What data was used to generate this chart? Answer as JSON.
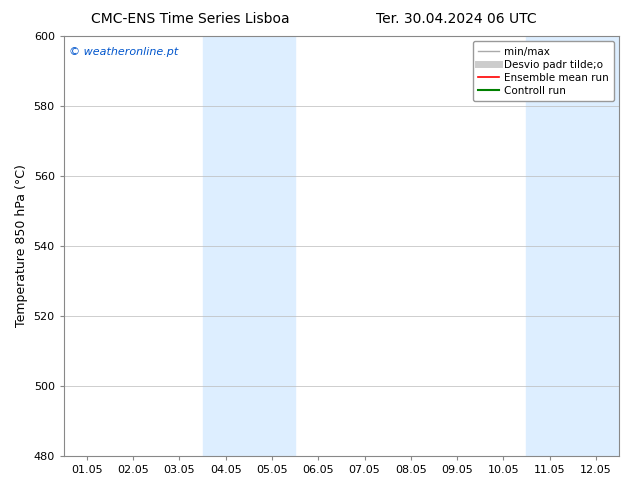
{
  "title_left": "CMC-ENS Time Series Lisboa",
  "title_right": "Ter. 30.04.2024 06 UTC",
  "ylabel": "Temperature 850 hPa (°C)",
  "watermark": "© weatheronline.pt",
  "watermark_color": "#0055CC",
  "ylim": [
    480,
    600
  ],
  "yticks": [
    480,
    500,
    520,
    540,
    560,
    580,
    600
  ],
  "xtick_labels": [
    "01.05",
    "02.05",
    "03.05",
    "04.05",
    "05.05",
    "06.05",
    "07.05",
    "08.05",
    "09.05",
    "10.05",
    "11.05",
    "12.05"
  ],
  "shaded_bands": [
    {
      "xmin": 3,
      "xmax": 5,
      "color": "#DDEEFF"
    },
    {
      "xmin": 10,
      "xmax": 12,
      "color": "#DDEEFF"
    }
  ],
  "legend_entries": [
    {
      "label": "min/max",
      "color": "#AAAAAA",
      "lw": 1.0
    },
    {
      "label": "Desvio padr tilde;o",
      "color": "#CCCCCC",
      "lw": 5.0
    },
    {
      "label": "Ensemble mean run",
      "color": "#FF0000",
      "lw": 1.2
    },
    {
      "label": "Controll run",
      "color": "#008000",
      "lw": 1.5
    }
  ],
  "bg_color": "#FFFFFF",
  "plot_bg_color": "#FFFFFF",
  "grid_color": "#BBBBBB",
  "title_fontsize": 10,
  "ylabel_fontsize": 9,
  "tick_fontsize": 8,
  "legend_fontsize": 7.5,
  "watermark_fontsize": 8
}
